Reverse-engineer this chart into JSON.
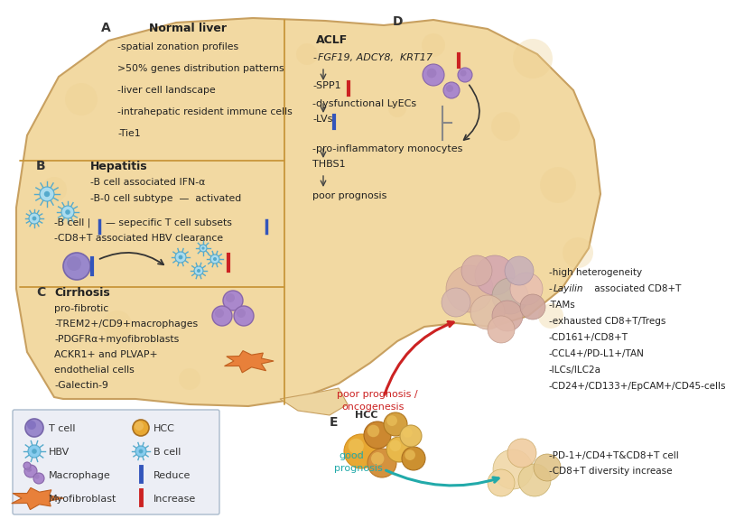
{
  "bg_color": "#FFFFFF",
  "liver_fill": "#F2D9A2",
  "liver_edge": "#C8A060",
  "section_line_color": "#C8963A",
  "legend_bg": "#ECEEF5",
  "legend_border": "#AABBCC",
  "panel_A_title": "Normal liver",
  "panel_A_lines": [
    "-spatial zonation profiles",
    ">50% genes distribution patterns",
    "-liver cell landscape",
    "-intrahepatic resident immune cells",
    "-Tie1"
  ],
  "panel_B_title": "Hepatitis",
  "panel_B_lines": [
    "-B cell associated IFN-α",
    "-B-0 cell subtype  —  activated"
  ],
  "panel_B_lines2": [
    "-B cell | — sepecific T cell subsets |",
    "-CD8+T associated HBV clearance"
  ],
  "panel_C_title": "Cirrhosis",
  "panel_C_lines": [
    "pro-fibrotic",
    "-TREM2+/CD9+macrophages",
    "-PDGFRα+myofibroblasts",
    "ACKR1+ and PLVAP+",
    "endothelial cells",
    "-Galectin-9"
  ],
  "panel_D_title": "ACLF",
  "panel_D_italic": "-FGF19, ADCY8,  KRT17",
  "panel_D_lines": [
    "-SPP1",
    "-dysfunctional LyECs",
    "-LVs",
    "-pro-inflammatory monocytes",
    "THBS1",
    "poor prognosis"
  ],
  "panel_E_hcc": "HCC",
  "panel_E_poor": "poor prognosis /\noncogenesis",
  "panel_E_good": "good\nprognosis",
  "panel_E_poor_lines": [
    "-high heterogeneity",
    "-Layilin associated CD8+T",
    "-TAMs",
    "-exhausted CD8+T/Tregs",
    "-CD161+/CD8+T",
    "-CCL4+/PD-L1+/TAN",
    "-ILCs/ILC2a",
    "-CD24+/CD133+/EpCAM+/CD45-cells"
  ],
  "panel_E_good_lines": [
    "-PD-1+/CD4+T&CD8+T cell",
    "-CD8+T diversity increase"
  ],
  "legend_left_labels": [
    "T cell",
    "HBV",
    "Macrophage",
    "Myofibroblast"
  ],
  "legend_right_labels": [
    "HCC",
    "B cell",
    "Reduce",
    "Increase"
  ]
}
